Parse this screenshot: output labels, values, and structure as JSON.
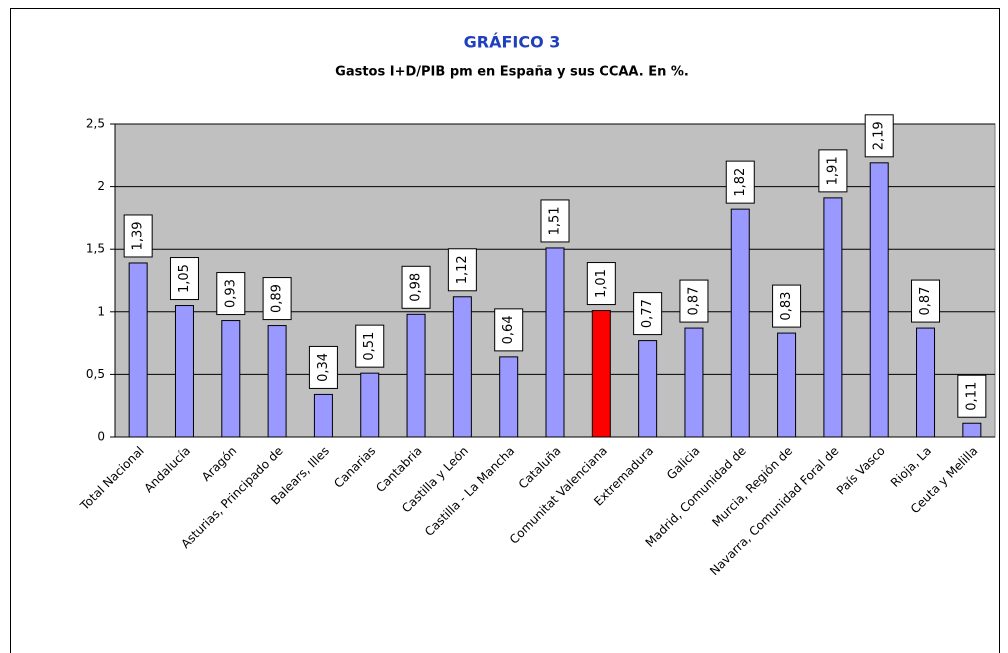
{
  "chart_data": {
    "type": "bar",
    "title": "GRÁFICO 3",
    "subtitle": "Gastos I+D/PIB pm en España y sus CCAA. En %.",
    "categories": [
      "Total Nacional",
      "Andalucía",
      "Aragón",
      "Asturias, Principado de",
      "Balears, Illes",
      "Canarias",
      "Cantabria",
      "Castilla y León",
      "Castilla - La Mancha",
      "Cataluña",
      "Comunitat Valenciana",
      "Extremadura",
      "Galicia",
      "Madrid, Comunidad de",
      "Murcia, Región de",
      "Navarra, Comunidad Foral de",
      "País Vasco",
      "Rioja, La",
      "Ceuta y Melilla"
    ],
    "values": [
      1.39,
      1.05,
      0.93,
      0.89,
      0.34,
      0.51,
      0.98,
      1.12,
      0.64,
      1.51,
      1.01,
      0.77,
      0.87,
      1.82,
      0.83,
      1.91,
      2.19,
      0.87,
      0.11
    ],
    "value_labels": [
      "1,39",
      "1,05",
      "0,93",
      "0,89",
      "0,34",
      "0,51",
      "0,98",
      "1,12",
      "0,64",
      "1,51",
      "1,01",
      "0,77",
      "0,87",
      "1,82",
      "0,83",
      "1,91",
      "2,19",
      "0,87",
      "0,11"
    ],
    "colors": [
      "#9999ff",
      "#9999ff",
      "#9999ff",
      "#9999ff",
      "#9999ff",
      "#9999ff",
      "#9999ff",
      "#9999ff",
      "#9999ff",
      "#9999ff",
      "#ff0000",
      "#9999ff",
      "#9999ff",
      "#9999ff",
      "#9999ff",
      "#9999ff",
      "#9999ff",
      "#9999ff",
      "#9999ff"
    ],
    "ylim": [
      0,
      2.5
    ],
    "yticks": [
      0,
      {
        "value": 0.5,
        "label": "0,5"
      },
      1,
      {
        "value": 1.5,
        "label": "1,5"
      },
      2,
      {
        "value": 2.5,
        "label": "2,5"
      }
    ],
    "grid": true
  }
}
